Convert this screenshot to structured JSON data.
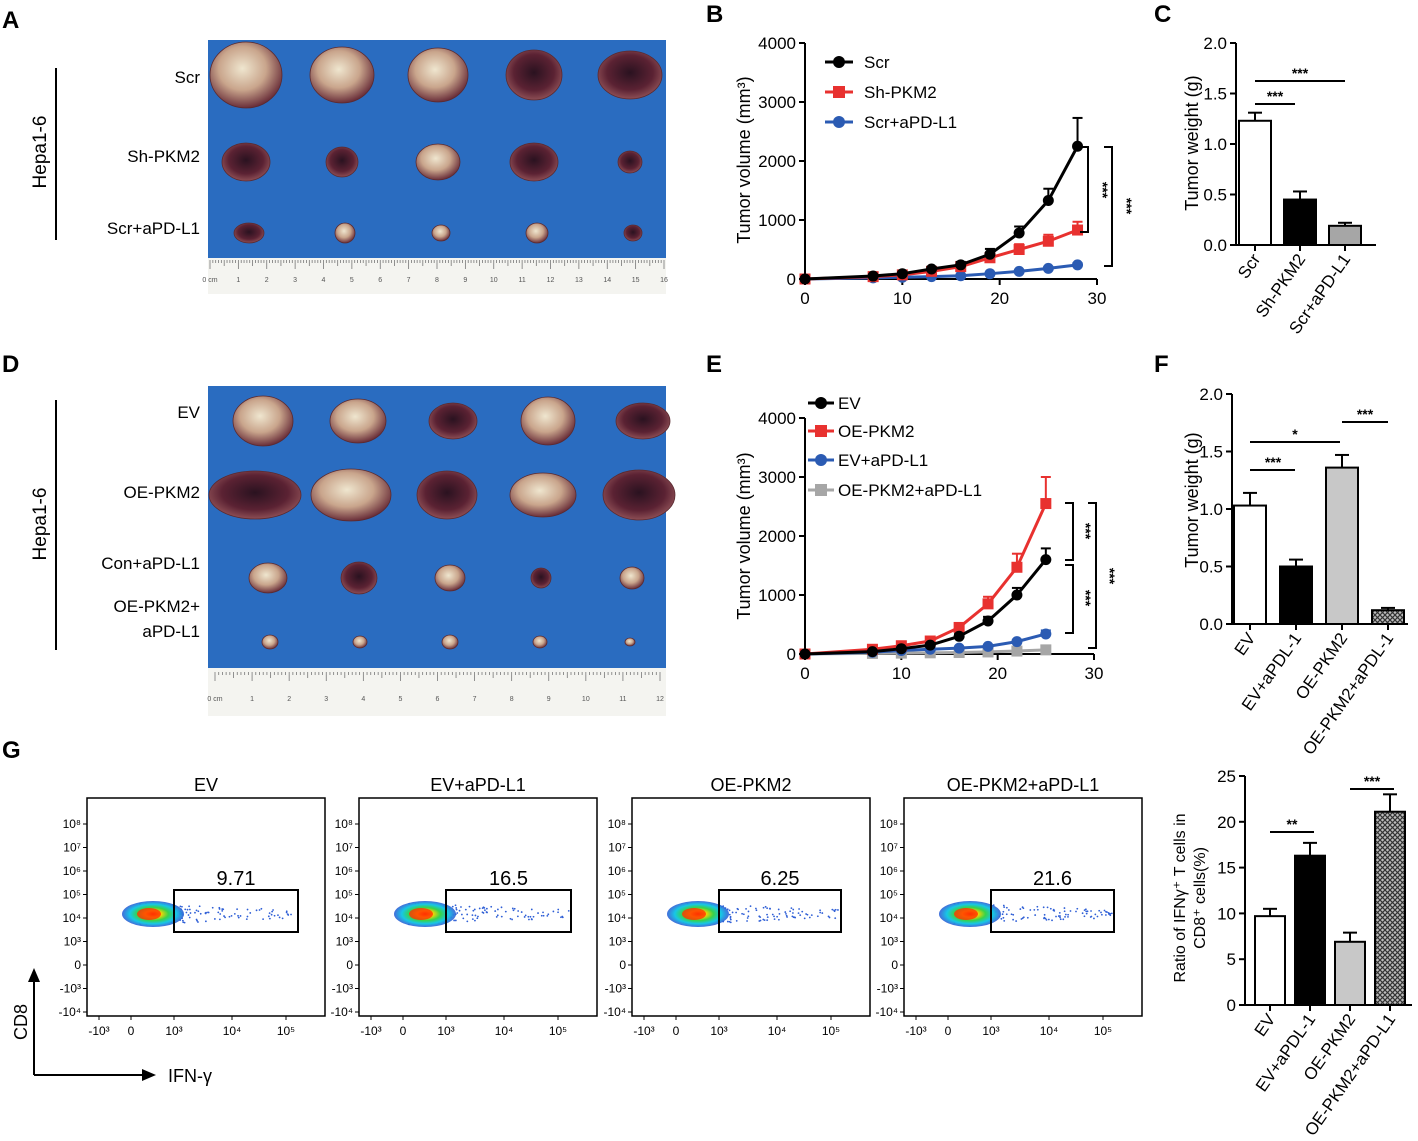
{
  "panels": {
    "A": {
      "letter": "A",
      "cell_line": "Hepa1-6",
      "rows": [
        "Scr",
        "Sh-PKM2",
        "Scr+aPD-L1"
      ],
      "ruler_ticks": [
        "0 cm",
        "1",
        "2",
        "3",
        "4",
        "5",
        "6",
        "7",
        "8",
        "9",
        "10",
        "11",
        "12",
        "13",
        "14",
        "15",
        "16"
      ]
    },
    "D": {
      "letter": "D",
      "cell_line": "Hepa1-6",
      "rows": [
        "EV",
        "OE-PKM2",
        "Con+aPD-L1",
        "OE-PKM2+",
        "aPD-L1"
      ],
      "ruler_ticks": [
        "0 cm",
        "1",
        "2",
        "3",
        "4",
        "5",
        "6",
        "7",
        "8",
        "9",
        "10",
        "11",
        "12"
      ]
    },
    "G": {
      "letter": "G",
      "y_axis": "CD8",
      "x_axis": "IFN-γ"
    }
  },
  "colors": {
    "black": "#000000",
    "red": "#e8312f",
    "blue": "#2b5bb3",
    "gray": "#a6a6a6",
    "board": "#2a6cc0"
  },
  "chart_data": [
    {
      "id": "B",
      "letter": "B",
      "type": "line",
      "ylabel": "Tumor volume (mm³)",
      "xlabel": "",
      "xlim": [
        0,
        30
      ],
      "ylim": [
        0,
        4000
      ],
      "xticks": [
        0,
        10,
        20,
        30
      ],
      "yticks": [
        0,
        1000,
        2000,
        3000,
        4000
      ],
      "x": [
        0,
        7,
        10,
        13,
        16,
        19,
        22,
        25,
        28
      ],
      "series": [
        {
          "name": "Scr",
          "color": "#000000",
          "marker": "circle",
          "values": [
            0,
            50,
            90,
            170,
            240,
            420,
            780,
            1330,
            2250
          ],
          "errors": [
            0,
            20,
            25,
            35,
            50,
            90,
            110,
            200,
            480
          ]
        },
        {
          "name": "Sh-PKM2",
          "color": "#e8312f",
          "marker": "square",
          "values": [
            0,
            40,
            70,
            130,
            210,
            360,
            500,
            640,
            830
          ],
          "errors": [
            0,
            15,
            20,
            25,
            35,
            55,
            90,
            110,
            140
          ]
        },
        {
          "name": "Scr+aPD-L1",
          "color": "#2b5bb3",
          "marker": "circle",
          "values": [
            0,
            20,
            30,
            40,
            55,
            90,
            130,
            180,
            240
          ],
          "errors": [
            0,
            5,
            8,
            8,
            10,
            15,
            20,
            25,
            30
          ]
        }
      ],
      "significance": [
        "***",
        "***"
      ]
    },
    {
      "id": "C",
      "letter": "C",
      "type": "bar",
      "ylabel": "Tumor weight (g)",
      "ylim": [
        0,
        2.0
      ],
      "yticks": [
        "0.0",
        "0.5",
        "1.0",
        "1.5",
        "2.0"
      ],
      "categories": [
        "Scr",
        "Sh-PKM2",
        "Scr+aPD-L1"
      ],
      "values": [
        1.23,
        0.45,
        0.19
      ],
      "errors": [
        0.08,
        0.08,
        0.03
      ],
      "fills": [
        "white",
        "black",
        "gray"
      ],
      "significance": [
        "***",
        "***"
      ]
    },
    {
      "id": "E",
      "letter": "E",
      "type": "line",
      "ylabel": "Tumor volume (mm³)",
      "xlabel": "",
      "xlim": [
        0,
        30
      ],
      "ylim": [
        0,
        4000
      ],
      "xticks": [
        0,
        10,
        20,
        30
      ],
      "yticks": [
        0,
        1000,
        2000,
        3000,
        4000
      ],
      "x": [
        0,
        7,
        10,
        13,
        16,
        19,
        22,
        25
      ],
      "series": [
        {
          "name": "EV",
          "color": "#000000",
          "marker": "circle",
          "values": [
            0,
            40,
            90,
            150,
            300,
            560,
            1000,
            1600
          ],
          "errors": [
            0,
            15,
            20,
            30,
            40,
            70,
            120,
            190
          ]
        },
        {
          "name": "OE-PKM2",
          "color": "#e8312f",
          "marker": "square",
          "values": [
            0,
            80,
            140,
            220,
            450,
            850,
            1470,
            2550
          ],
          "errors": [
            0,
            25,
            30,
            40,
            60,
            120,
            230,
            450
          ]
        },
        {
          "name": "EV+aPD-L1",
          "color": "#2b5bb3",
          "marker": "circle",
          "values": [
            0,
            30,
            60,
            80,
            100,
            130,
            210,
            340
          ],
          "errors": [
            0,
            10,
            12,
            12,
            15,
            20,
            30,
            60
          ]
        },
        {
          "name": "OE-PKM2+aPD-L1",
          "color": "#a6a6a6",
          "marker": "square",
          "values": [
            0,
            10,
            15,
            20,
            25,
            35,
            50,
            70
          ],
          "errors": [
            0,
            5,
            5,
            5,
            5,
            8,
            10,
            12
          ]
        }
      ],
      "significance": [
        "***",
        "***",
        "***"
      ]
    },
    {
      "id": "F",
      "letter": "F",
      "type": "bar",
      "ylabel": "Tumor weight (g)",
      "ylim": [
        0,
        2.0
      ],
      "yticks": [
        "0.0",
        "0.5",
        "1.0",
        "1.5",
        "2.0"
      ],
      "categories": [
        "EV",
        "EV+aPDL-1",
        "OE-PKM2",
        "OE-PKM2+aPDL-1"
      ],
      "values": [
        1.03,
        0.5,
        1.36,
        0.12
      ],
      "errors": [
        0.11,
        0.06,
        0.11,
        0.02
      ],
      "fills": [
        "white",
        "black",
        "lightgray",
        "hatch"
      ],
      "significance": [
        "*",
        "***",
        "***"
      ]
    },
    {
      "id": "G-flow",
      "type": "scatter",
      "xlabel": "IFN-γ",
      "ylabel": "CD8",
      "plots": [
        {
          "title": "EV",
          "gate_percent": "9.71"
        },
        {
          "title": "EV+aPD-L1",
          "gate_percent": "16.5"
        },
        {
          "title": "OE-PKM2",
          "gate_percent": "6.25"
        },
        {
          "title": "OE-PKM2+aPD-L1",
          "gate_percent": "21.6"
        }
      ],
      "x_ticks": [
        "-10³",
        "0",
        "10³",
        "10⁴",
        "10⁵"
      ],
      "y_ticks": [
        "10⁸",
        "10⁷",
        "10⁶",
        "10⁵",
        "10⁴",
        "10³",
        "0",
        "-10³",
        "-10⁴"
      ]
    },
    {
      "id": "G",
      "type": "bar",
      "ylabel_line1": "Ratio of IFNγ⁺ T cells in",
      "ylabel_line2": "CD8⁺ cells(%)",
      "ylim": [
        0,
        25
      ],
      "yticks": [
        "0",
        "5",
        "10",
        "15",
        "20",
        "25"
      ],
      "categories": [
        "EV",
        "EV+aPDL-1",
        "OE-PKM2",
        "OE-PKM2+aPD-L1"
      ],
      "values": [
        9.7,
        16.3,
        6.9,
        21.1
      ],
      "errors": [
        0.8,
        1.4,
        1.0,
        1.9
      ],
      "fills": [
        "white",
        "black",
        "lightgray",
        "hatch"
      ],
      "significance": [
        "**",
        "***"
      ]
    }
  ]
}
